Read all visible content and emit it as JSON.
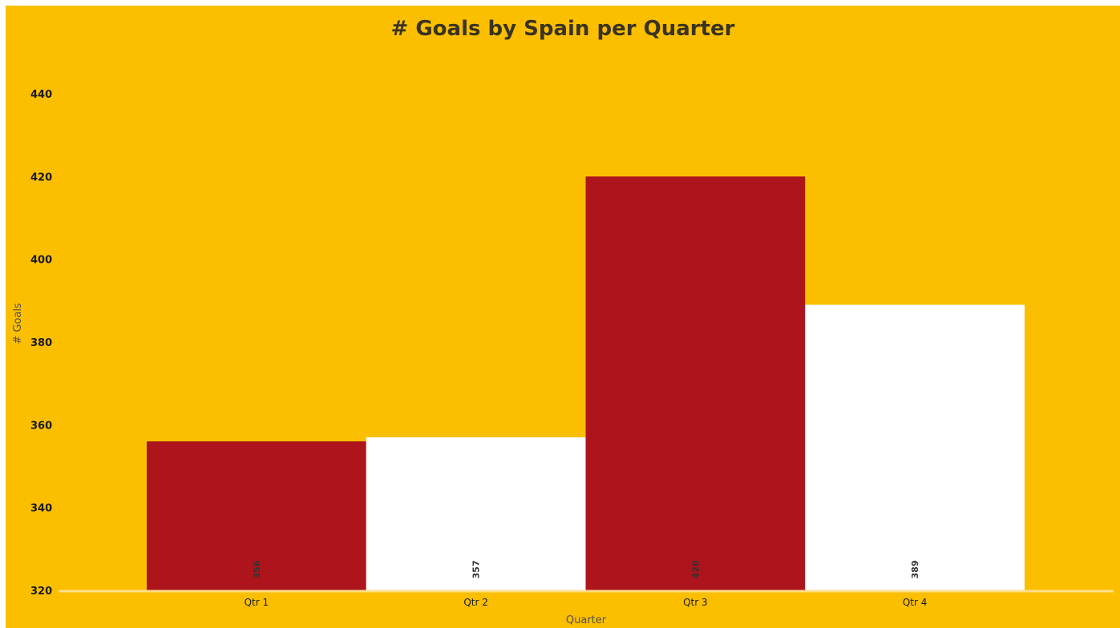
{
  "chart_data": {
    "type": "bar",
    "title": "# Goals by Spain per Quarter",
    "xlabel": "Quarter",
    "ylabel": "# Goals",
    "categories": [
      "Qtr 1",
      "Qtr 2",
      "Qtr 3",
      "Qtr 4"
    ],
    "values": [
      356,
      357,
      420,
      389
    ],
    "data_labels": [
      "356",
      "357",
      "420",
      "389"
    ],
    "bar_colors": [
      "#AE141B",
      "#FFFFFF",
      "#AE141B",
      "#FFFFFF"
    ],
    "background_color": "#FBBF00",
    "axis_line_color": "#FFE08A",
    "ylim": [
      320,
      440
    ],
    "yticks": [
      320,
      340,
      360,
      380,
      400,
      420,
      440
    ],
    "ytick_labels": [
      "320",
      "340",
      "360",
      "380",
      "400",
      "420",
      "440"
    ],
    "grid": false,
    "legend": "none"
  }
}
